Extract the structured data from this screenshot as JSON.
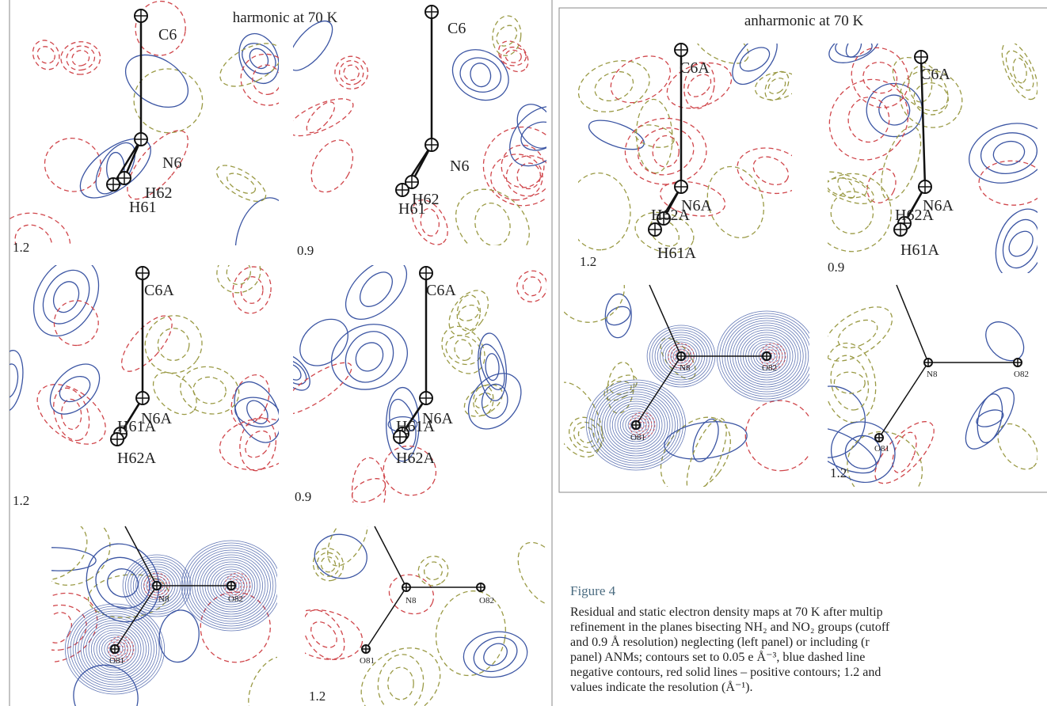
{
  "left_panel": {
    "title": "harmonic at 70 K",
    "maps": [
      {
        "resolution": "1.2",
        "atoms": [
          "C6",
          "N6",
          "H62",
          "H61"
        ]
      },
      {
        "resolution": "0.9",
        "atoms": [
          "C6",
          "N6",
          "H62",
          "H61"
        ]
      },
      {
        "resolution": "1.2",
        "atoms": [
          "C6A",
          "N6A",
          "H61A",
          "H62A"
        ]
      },
      {
        "resolution": "0.9",
        "atoms": [
          "C6A",
          "N6A",
          "H61A",
          "H62A"
        ]
      },
      {
        "atoms": [
          "N8",
          "O82",
          "O81"
        ]
      },
      {
        "resolution": "1.2",
        "atoms": [
          "N8",
          "O82",
          "O81"
        ]
      }
    ]
  },
  "right_panel": {
    "title": "anharmonic at 70 K",
    "maps": [
      {
        "resolution": "1.2",
        "atoms": [
          "C6A",
          "N6A",
          "H62A",
          "H61A"
        ]
      },
      {
        "resolution": "0.9",
        "atoms": [
          "C6A",
          "N6A",
          "H62A",
          "H61A"
        ]
      },
      {
        "atoms": [
          "N8",
          "O82",
          "O81"
        ]
      },
      {
        "resolution": "1.2",
        "atoms": [
          "N8",
          "O82",
          "O81"
        ]
      }
    ]
  },
  "figure": {
    "label": "Figure 4",
    "caption_lines": [
      "Residual and static electron density maps at 70 K after multip",
      "refinement in the planes bisecting NH₂ and NO₂ groups (cutoff",
      "and 0.9 Å resolution) neglecting (left panel) or including (r",
      "panel) ANMs; contours set to 0.05 e Å⁻³, blue dashed line",
      "negative contours, red solid lines – positive contours; 1.2 and",
      "values indicate the resolution (Å⁻¹)."
    ]
  }
}
